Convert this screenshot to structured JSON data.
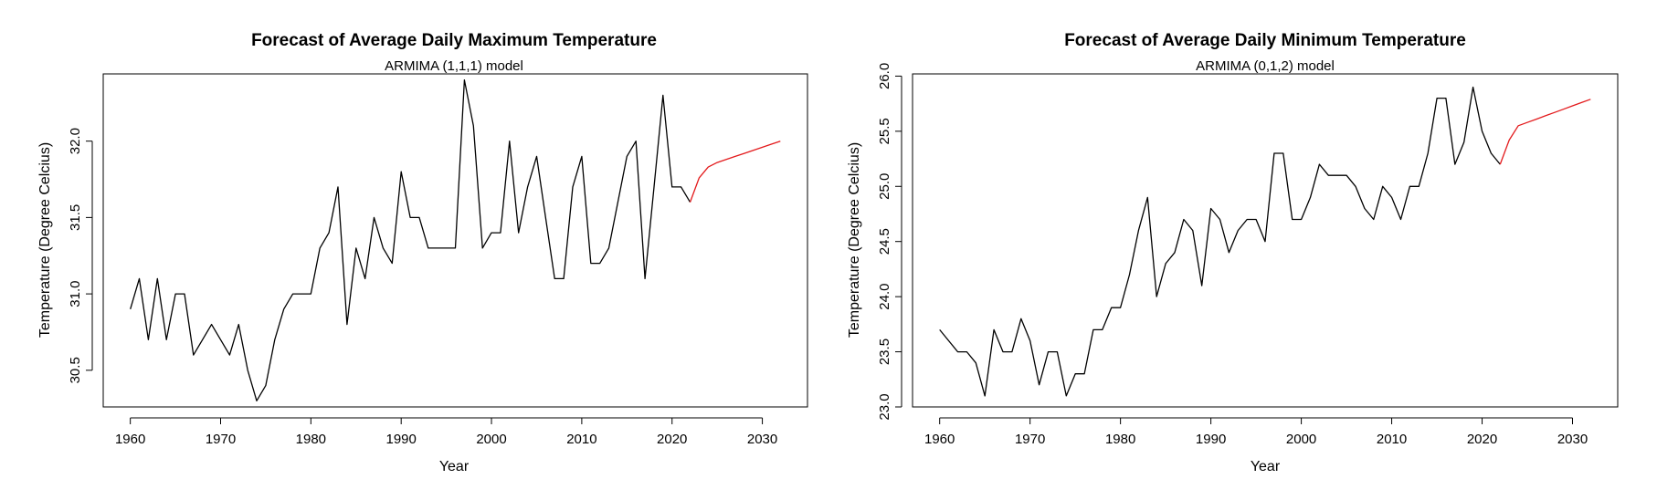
{
  "chart_data": [
    {
      "type": "line",
      "title": "Forecast of Average Daily Maximum Temperature",
      "subtitle": "ARMIMA (1,1,1) model",
      "xlabel": "Year",
      "ylabel": "Temperature (Degree Celcius)",
      "xlim": [
        1957,
        2035
      ],
      "ylim": [
        30.26,
        32.44
      ],
      "x_ticks": [
        1960,
        1970,
        1980,
        1990,
        2000,
        2010,
        2020,
        2030
      ],
      "y_ticks": [
        30.5,
        31.0,
        31.5,
        32.0
      ],
      "x_tick_labels": [
        "1960",
        "1970",
        "1980",
        "1990",
        "2000",
        "2010",
        "2020",
        "2030"
      ],
      "y_tick_labels": [
        "30.5",
        "31.0",
        "31.5",
        "32.0"
      ],
      "grid": false,
      "series": [
        {
          "color": "#000000",
          "x": [
            1960,
            1961,
            1962,
            1963,
            1964,
            1965,
            1966,
            1967,
            1968,
            1969,
            1970,
            1971,
            1972,
            1973,
            1974,
            1975,
            1976,
            1977,
            1978,
            1979,
            1980,
            1981,
            1982,
            1983,
            1984,
            1985,
            1986,
            1987,
            1988,
            1989,
            1990,
            1991,
            1992,
            1993,
            1994,
            1995,
            1996,
            1997,
            1998,
            1999,
            2000,
            2001,
            2002,
            2003,
            2004,
            2005,
            2006,
            2007,
            2008,
            2009,
            2010,
            2011,
            2012,
            2013,
            2014,
            2015,
            2016,
            2017,
            2018,
            2019,
            2020,
            2021,
            2022
          ],
          "y": [
            30.9,
            31.1,
            30.7,
            31.1,
            30.7,
            31.0,
            31.0,
            30.6,
            30.7,
            30.8,
            30.7,
            30.6,
            30.8,
            30.5,
            30.3,
            30.4,
            30.7,
            30.9,
            31.0,
            31.0,
            31.0,
            31.3,
            31.4,
            31.7,
            30.8,
            31.3,
            31.1,
            31.5,
            31.3,
            31.2,
            31.8,
            31.5,
            31.5,
            31.3,
            31.3,
            31.3,
            31.3,
            32.4,
            32.1,
            31.3,
            31.4,
            31.4,
            32.0,
            31.4,
            31.7,
            31.9,
            31.5,
            31.1,
            31.1,
            31.7,
            31.9,
            31.2,
            31.2,
            31.3,
            31.6,
            31.9,
            32.0,
            31.1,
            31.7,
            32.3,
            31.7,
            31.7,
            31.6
          ]
        },
        {
          "color": "#e31a1c",
          "x": [
            2022,
            2023,
            2024,
            2025,
            2026,
            2027,
            2028,
            2029,
            2030,
            2031,
            2032
          ],
          "y": [
            31.6,
            31.76,
            31.83,
            31.86,
            31.88,
            31.9,
            31.92,
            31.94,
            31.96,
            31.98,
            32.0
          ]
        }
      ]
    },
    {
      "type": "line",
      "title": "Forecast of Average Daily Minimum Temperature",
      "subtitle": "ARMIMA (0,1,2) model",
      "xlabel": "Year",
      "ylabel": "Temperature (Degree Celcius)",
      "xlim": [
        1957,
        2035
      ],
      "ylim": [
        23.0,
        26.02
      ],
      "x_ticks": [
        1960,
        1970,
        1980,
        1990,
        2000,
        2010,
        2020,
        2030
      ],
      "y_ticks": [
        23.0,
        23.5,
        24.0,
        24.5,
        25.0,
        25.5,
        26.0
      ],
      "x_tick_labels": [
        "1960",
        "1970",
        "1980",
        "1990",
        "2000",
        "2010",
        "2020",
        "2030"
      ],
      "y_tick_labels": [
        "23.0",
        "23.5",
        "24.0",
        "24.5",
        "25.0",
        "25.5",
        "26.0"
      ],
      "grid": false,
      "series": [
        {
          "color": "#000000",
          "x": [
            1960,
            1961,
            1962,
            1963,
            1964,
            1965,
            1966,
            1967,
            1968,
            1969,
            1970,
            1971,
            1972,
            1973,
            1974,
            1975,
            1976,
            1977,
            1978,
            1979,
            1980,
            1981,
            1982,
            1983,
            1984,
            1985,
            1986,
            1987,
            1988,
            1989,
            1990,
            1991,
            1992,
            1993,
            1994,
            1995,
            1996,
            1997,
            1998,
            1999,
            2000,
            2001,
            2002,
            2003,
            2004,
            2005,
            2006,
            2007,
            2008,
            2009,
            2010,
            2011,
            2012,
            2013,
            2014,
            2015,
            2016,
            2017,
            2018,
            2019,
            2020,
            2021,
            2022
          ],
          "y": [
            23.7,
            23.6,
            23.5,
            23.5,
            23.4,
            23.1,
            23.7,
            23.5,
            23.5,
            23.8,
            23.6,
            23.2,
            23.5,
            23.5,
            23.1,
            23.3,
            23.3,
            23.7,
            23.7,
            23.9,
            23.9,
            24.2,
            24.6,
            24.9,
            24.0,
            24.3,
            24.4,
            24.7,
            24.6,
            24.1,
            24.8,
            24.7,
            24.4,
            24.6,
            24.7,
            24.7,
            24.5,
            25.3,
            25.3,
            24.7,
            24.7,
            24.9,
            25.2,
            25.1,
            25.1,
            25.1,
            25.0,
            24.8,
            24.7,
            25.0,
            24.9,
            24.7,
            25.0,
            25.0,
            25.3,
            25.8,
            25.8,
            25.2,
            25.4,
            25.9,
            25.5,
            25.3,
            25.2
          ]
        },
        {
          "color": "#e31a1c",
          "x": [
            2022,
            2023,
            2024,
            2025,
            2026,
            2027,
            2028,
            2029,
            2030,
            2031,
            2032
          ],
          "y": [
            25.2,
            25.42,
            25.55,
            25.58,
            25.61,
            25.64,
            25.67,
            25.7,
            25.73,
            25.76,
            25.79
          ]
        }
      ]
    }
  ]
}
